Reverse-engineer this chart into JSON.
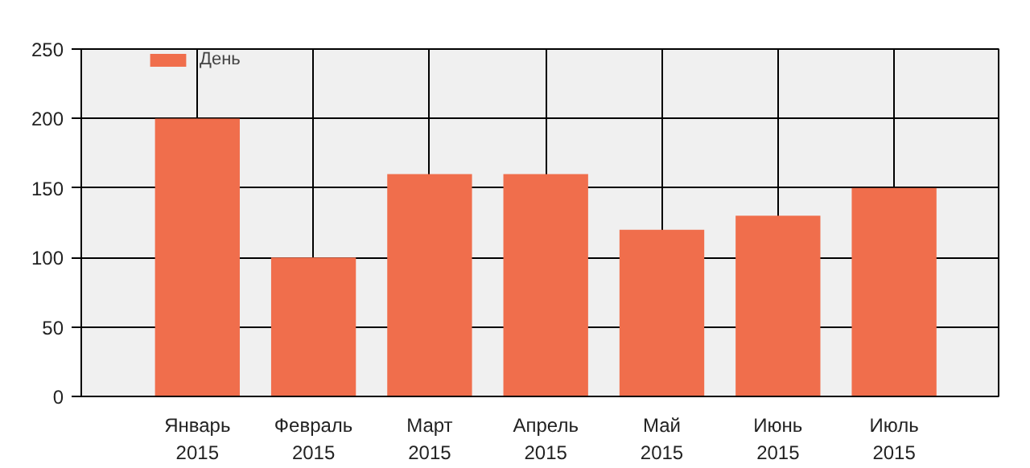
{
  "chart_data": {
    "type": "bar",
    "categories": [
      "Январь\n2015",
      "Февраль\n2015",
      "Март\n2015",
      "Апрель\n2015",
      "Май\n2015",
      "Июнь\n2015",
      "Июль\n2015"
    ],
    "series": [
      {
        "name": "День",
        "color": "#f06e4c",
        "values": [
          200,
          100,
          160,
          160,
          120,
          130,
          150
        ]
      }
    ],
    "ylim": [
      0,
      250
    ],
    "yticks": [
      0,
      50,
      100,
      150,
      200,
      250
    ],
    "grid": true,
    "legend": "top left"
  }
}
